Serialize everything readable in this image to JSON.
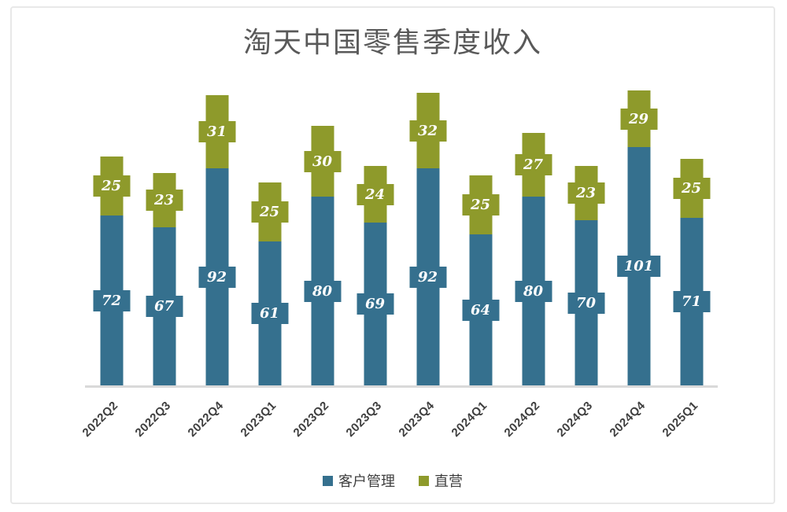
{
  "frame": {
    "background": "#ffffff",
    "border_color": "#e8e8e8",
    "axis_line_color": "#d9d9d9",
    "title_color": "#595959",
    "x_label_color": "#3f3f3f",
    "legend_text_color": "#404040",
    "data_label_text_color": "#ffffff"
  },
  "chart_data": {
    "type": "bar",
    "stacked": true,
    "title": "淘天中国零售季度收入",
    "categories": [
      "2022Q2",
      "2022Q3",
      "2022Q4",
      "2023Q1",
      "2023Q2",
      "2023Q3",
      "2023Q4",
      "2024Q1",
      "2024Q2",
      "2024Q3",
      "2024Q4",
      "2025Q1"
    ],
    "series": [
      {
        "name": "客户管理",
        "color": "#35708E",
        "values": [
          72,
          67,
          92,
          61,
          80,
          69,
          92,
          64,
          80,
          70,
          101,
          71
        ]
      },
      {
        "name": "直营",
        "color": "#8E9A2B",
        "values": [
          25,
          23,
          31,
          25,
          30,
          24,
          32,
          25,
          27,
          23,
          29,
          25
        ]
      }
    ],
    "ylim": [
      0,
      125
    ],
    "xlabel": "",
    "ylabel": "",
    "gridlines": false,
    "y_axis_visible": false,
    "legend_position": "bottom",
    "data_labels": "centered filled badges, white bold italic"
  }
}
